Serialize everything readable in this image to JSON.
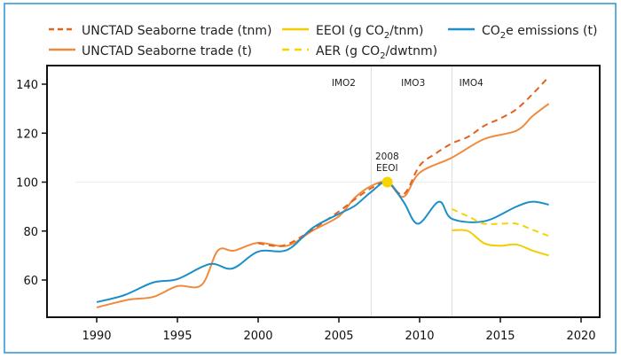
{
  "chart_data": {
    "type": "line",
    "xlim": [
      1988,
      2021
    ],
    "ylim": [
      48,
      148
    ],
    "x_ticks": [
      "1990",
      "1995",
      "2000",
      "2005",
      "2010",
      "2015",
      "2020"
    ],
    "y_ticks": [
      "60",
      "80",
      "100",
      "120",
      "140"
    ],
    "grid": "single horizontal line at 100",
    "legend_position": "top",
    "series": [
      {
        "name": "UNCTAD Seaborne trade (tnm)",
        "color": "#e0631e",
        "dash": true,
        "x": [
          2000,
          2001.5,
          2003,
          2005,
          2006,
          2007,
          2008,
          2009,
          2010,
          2011,
          2012,
          2013,
          2014,
          2015,
          2016,
          2017,
          2018
        ],
        "y": [
          75,
          74,
          79,
          88,
          93,
          97.5,
          100,
          95,
          106.7,
          111.7,
          115.8,
          118.5,
          123,
          126,
          129.8,
          136,
          143
        ]
      },
      {
        "name": "UNCTAD Seaborne trade (t)",
        "color": "#f08a3c",
        "dash": false,
        "x": [
          1990,
          1992,
          1993.5,
          1995,
          1996.5,
          1997.5,
          1998.5,
          2000,
          2001.8,
          2003.4,
          2005,
          2006,
          2007,
          2008,
          2009,
          2010,
          2012,
          2014,
          2016,
          2017,
          2018
        ],
        "y": [
          48.8,
          52,
          53.1,
          57.5,
          58,
          72,
          72,
          75.2,
          74,
          80.3,
          86,
          93.7,
          98.4,
          100,
          94,
          103.8,
          110,
          117.6,
          121,
          127,
          132
        ]
      },
      {
        "name": "EEOI (g CO2/tnm)",
        "color": "#f5cc00",
        "dash": false,
        "x": [
          2012,
          2013,
          2014,
          2015,
          2016,
          2017,
          2018
        ],
        "y": [
          80.3,
          80,
          75,
          74,
          74.5,
          72,
          70
        ]
      },
      {
        "name": "AER (g CO2/dwtnm)",
        "color": "#f5d400",
        "dash": true,
        "x": [
          2012,
          2013,
          2014,
          2015,
          2016,
          2017,
          2018
        ],
        "y": [
          89,
          86,
          83,
          83,
          83,
          80.5,
          78
        ]
      },
      {
        "name": "CO2e emissions (t)",
        "color": "#1a8fc9",
        "dash": false,
        "x": [
          1990,
          1991.7,
          1993.5,
          1995,
          1997,
          1998.4,
          2000,
          2001.8,
          2003.4,
          2005,
          2006,
          2007,
          2008,
          2009,
          2009.9,
          2011.2,
          2012,
          2014,
          2016,
          2017,
          2018
        ],
        "y": [
          51,
          53.8,
          59,
          60.4,
          66.5,
          64.7,
          71.6,
          72.3,
          81.4,
          87,
          90.4,
          96,
          100,
          92,
          83,
          92,
          85,
          84,
          90,
          92,
          90.8
        ]
      }
    ],
    "markers": [
      {
        "label": "2008 EEOI",
        "x": 2008,
        "y": 100,
        "color": "#f5d400"
      }
    ],
    "vlines": [
      {
        "x": 2007
      },
      {
        "x": 2012
      }
    ],
    "period_labels": [
      {
        "label": "IMO2",
        "x": 2005.3
      },
      {
        "label": "IMO3",
        "x": 2009.6
      },
      {
        "label": "IMO4",
        "x": 2013.2
      }
    ]
  },
  "legend": [
    {
      "label": "UNCTAD Seaborne trade (tnm)"
    },
    {
      "label_pre": "EEOI (g CO",
      "sub": "2",
      "label_post": "/tnm)"
    },
    {
      "label_pre": "CO",
      "sub": "2",
      "label_post": "e emissions (t)"
    },
    {
      "label": "UNCTAD Seaborne trade (t)"
    },
    {
      "label_pre": "AER (g CO",
      "sub": "2",
      "label_post": "/dwtnm)"
    }
  ],
  "annotation": {
    "line1": "2008",
    "line2": "EEOI"
  },
  "frame_color": "#2a93d5"
}
